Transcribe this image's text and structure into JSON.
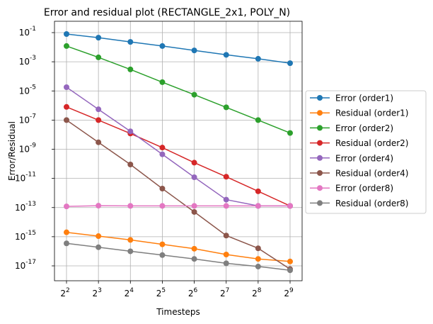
{
  "chart_data": {
    "type": "line",
    "title": "Error and residual plot (RECTANGLE_2x1, POLY_N)",
    "xlabel": "Timesteps",
    "ylabel": "Error/Residual",
    "x": [
      4,
      8,
      16,
      32,
      64,
      128,
      256,
      512
    ],
    "x_scale": "log2",
    "x_tick_exponents": [
      "2",
      "3",
      "4",
      "5",
      "6",
      "7",
      "8",
      "9"
    ],
    "y_scale": "log10",
    "y_tick_exponents": [
      "-1",
      "-3",
      "-5",
      "-7",
      "-9",
      "-11",
      "-13",
      "-15",
      "-17"
    ],
    "ylim": [
      3e-18,
      0.3
    ],
    "grid": true,
    "legend_position": "outside right",
    "series": [
      {
        "name": "Error (order1)",
        "color": "#1f77b4",
        "values": [
          0.08,
          0.045,
          0.023,
          0.012,
          0.006,
          0.003,
          0.0016,
          0.0008
        ]
      },
      {
        "name": "Residual (order1)",
        "color": "#ff7f0e",
        "values": [
          2e-15,
          1.1e-15,
          6e-16,
          3e-16,
          1.5e-16,
          6e-17,
          3e-17,
          2e-17
        ]
      },
      {
        "name": "Error (order2)",
        "color": "#2ca02c",
        "values": [
          0.012,
          0.002,
          0.0003,
          4e-05,
          5.5e-06,
          7.5e-07,
          1e-07,
          1.3e-08
        ]
      },
      {
        "name": "Residual (order2)",
        "color": "#d62728",
        "values": [
          8e-07,
          1e-07,
          1.2e-08,
          1.3e-09,
          1.2e-10,
          1.3e-11,
          1.3e-12,
          1.3e-13
        ]
      },
      {
        "name": "Error (order4)",
        "color": "#9467bd",
        "values": [
          1.8e-05,
          5.5e-07,
          1.7e-08,
          4.5e-10,
          1.2e-11,
          3.5e-13,
          1.3e-13,
          1.3e-13
        ]
      },
      {
        "name": "Residual (order4)",
        "color": "#8c564b",
        "values": [
          1e-07,
          3e-09,
          9e-11,
          2e-12,
          5e-14,
          1.2e-15,
          1.6e-16,
          6e-18
        ]
      },
      {
        "name": "Error (order8)",
        "color": "#e377c2",
        "values": [
          1.2e-13,
          1.35e-13,
          1.3e-13,
          1.3e-13,
          1.3e-13,
          1.3e-13,
          1.3e-13,
          1.3e-13
        ]
      },
      {
        "name": "Residual (order8)",
        "color": "#7f7f7f",
        "values": [
          3.5e-16,
          1.9e-16,
          1e-16,
          5.5e-17,
          3e-17,
          1.5e-17,
          9e-18,
          5e-18
        ]
      }
    ]
  }
}
